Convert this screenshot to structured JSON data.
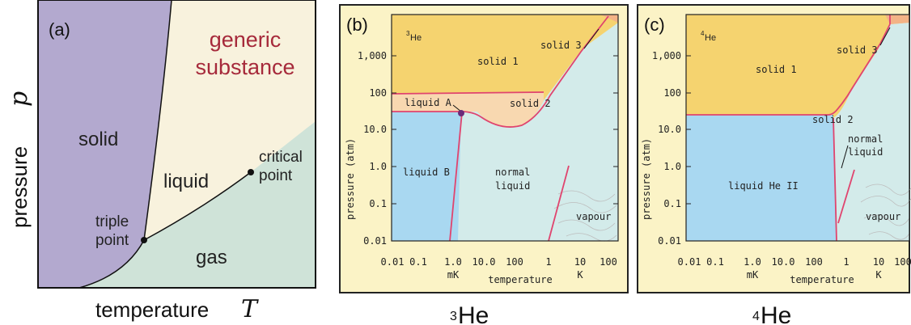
{
  "panel_a": {
    "label": "(a)",
    "title_line1": "generic",
    "title_line2": "substance",
    "region_solid": "solid",
    "region_liquid": "liquid",
    "region_gas": "gas",
    "triple_line1": "triple",
    "triple_line2": "point",
    "critical_line1": "critical",
    "critical_line2": "point",
    "y_label_word": "pressure",
    "y_label_symbol": "p",
    "x_label_word": "temperature",
    "x_label_symbol": "T",
    "colors": {
      "solid": "#b3a9cf",
      "liquid": "#f8f2dd",
      "gas": "#cfe3d8",
      "title": "#a62a3b"
    }
  },
  "panel_b": {
    "label": "(b)",
    "isotope_mass": "3",
    "isotope_symbol": "He",
    "caption_mass": "3",
    "caption_symbol": "He",
    "region_solid1": "solid 1",
    "region_solid2": "solid 2",
    "region_solid3": "solid 3",
    "region_liquidA": "liquid A",
    "region_liquidB": "liquid B",
    "region_normal1": "normal",
    "region_normal2": "liquid",
    "region_vapour": "vapour"
  },
  "panel_c": {
    "label": "(c)",
    "isotope_mass": "4",
    "isotope_symbol": "He",
    "caption_mass": "4",
    "caption_symbol": "He",
    "region_solid1": "solid 1",
    "region_solid2": "solid 2",
    "region_solid3": "solid 3",
    "region_normal1": "normal",
    "region_normal2": "liquid",
    "region_heII": "liquid He II",
    "region_vapour": "vapour"
  },
  "axes_b": {
    "y_ticks": [
      "1,000",
      "100",
      "10.0",
      "1.0",
      "0.1",
      "0.01"
    ],
    "x_ticks": [
      "0.01",
      "0.1",
      "1.0",
      "10.0",
      "100",
      "1",
      "10",
      "100"
    ],
    "x_unit_mk": "mK",
    "x_unit_k": "K",
    "x_label": "temperature",
    "y_label": "pressure (atm)"
  },
  "axes_c": {
    "y_ticks": [
      "1,000",
      "100",
      "10.0",
      "1.0",
      "0.1",
      "0.01"
    ],
    "x_ticks": [
      "0.01",
      "0.1",
      "1.0",
      "10.0",
      "100",
      "1",
      "10",
      "100"
    ],
    "x_unit_mk": "mK",
    "x_unit_k": "K",
    "x_label": "temperature",
    "y_label": "pressure (atm)"
  },
  "helium_colors": {
    "solid": "#f5d36f",
    "liquid": "#d3ebea",
    "superfluid": "#a9d8f1",
    "solid_hot": "#f3b386",
    "line": "#e0446e",
    "frame": "#222222"
  }
}
